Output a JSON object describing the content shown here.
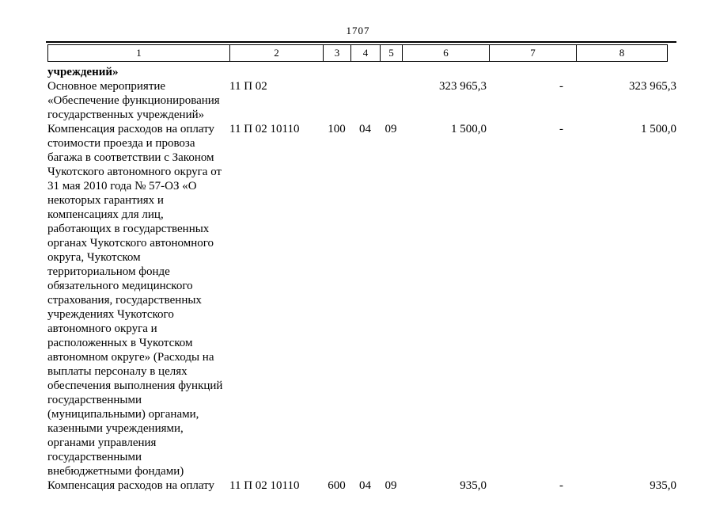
{
  "page_number": "1707",
  "table": {
    "column_numbers": [
      "1",
      "2",
      "3",
      "4",
      "5",
      "6",
      "7",
      "8"
    ],
    "rows": [
      {
        "style": "bold",
        "col1_lines": [
          "учреждений»"
        ],
        "col2": "",
        "col3": "",
        "col4": "",
        "col5": "",
        "col6": "",
        "col7": "",
        "col8": ""
      },
      {
        "style": "normal",
        "col1_lines": [
          "Основное мероприятие",
          "«Обеспечение функционирования",
          "государственных учреждений»"
        ],
        "col2": "11 П 02",
        "col3": "",
        "col4": "",
        "col5": "",
        "col6": "323 965,3",
        "col7": "-",
        "col8": "323 965,3"
      },
      {
        "style": "normal",
        "col1_lines": [
          "Компенсация расходов на оплату",
          "стоимости проезда и провоза",
          "багажа в соответствии с Законом",
          "Чукотского автономного округа от",
          "31 мая 2010 года № 57-ОЗ «О",
          "некоторых гарантиях и",
          "компенсациях для лиц,",
          "работающих в государственных",
          "органах Чукотского автономного",
          "округа, Чукотском",
          "территориальном фонде",
          "обязательного медицинского",
          "страхования, государственных",
          "учреждениях Чукотского",
          "автономного округа и",
          "расположенных в Чукотском",
          "автономном округе» (Расходы на",
          "выплаты персоналу в целях",
          "обеспечения выполнения функций",
          "государственными",
          "(муниципальными) органами,",
          "казенными учреждениями,",
          "органами управления",
          "государственными",
          "внебюджетными фондами)"
        ],
        "col2": "11 П 02 10110",
        "col3": "100",
        "col4": "04",
        "col5": "09",
        "col6": "1 500,0",
        "col7": "-",
        "col8": "1 500,0"
      },
      {
        "style": "normal",
        "col1_lines": [
          "Компенсация расходов на оплату"
        ],
        "col2": "11 П 02 10110",
        "col3": "600",
        "col4": "04",
        "col5": "09",
        "col6": "935,0",
        "col7": "-",
        "col8": "935,0"
      }
    ]
  }
}
